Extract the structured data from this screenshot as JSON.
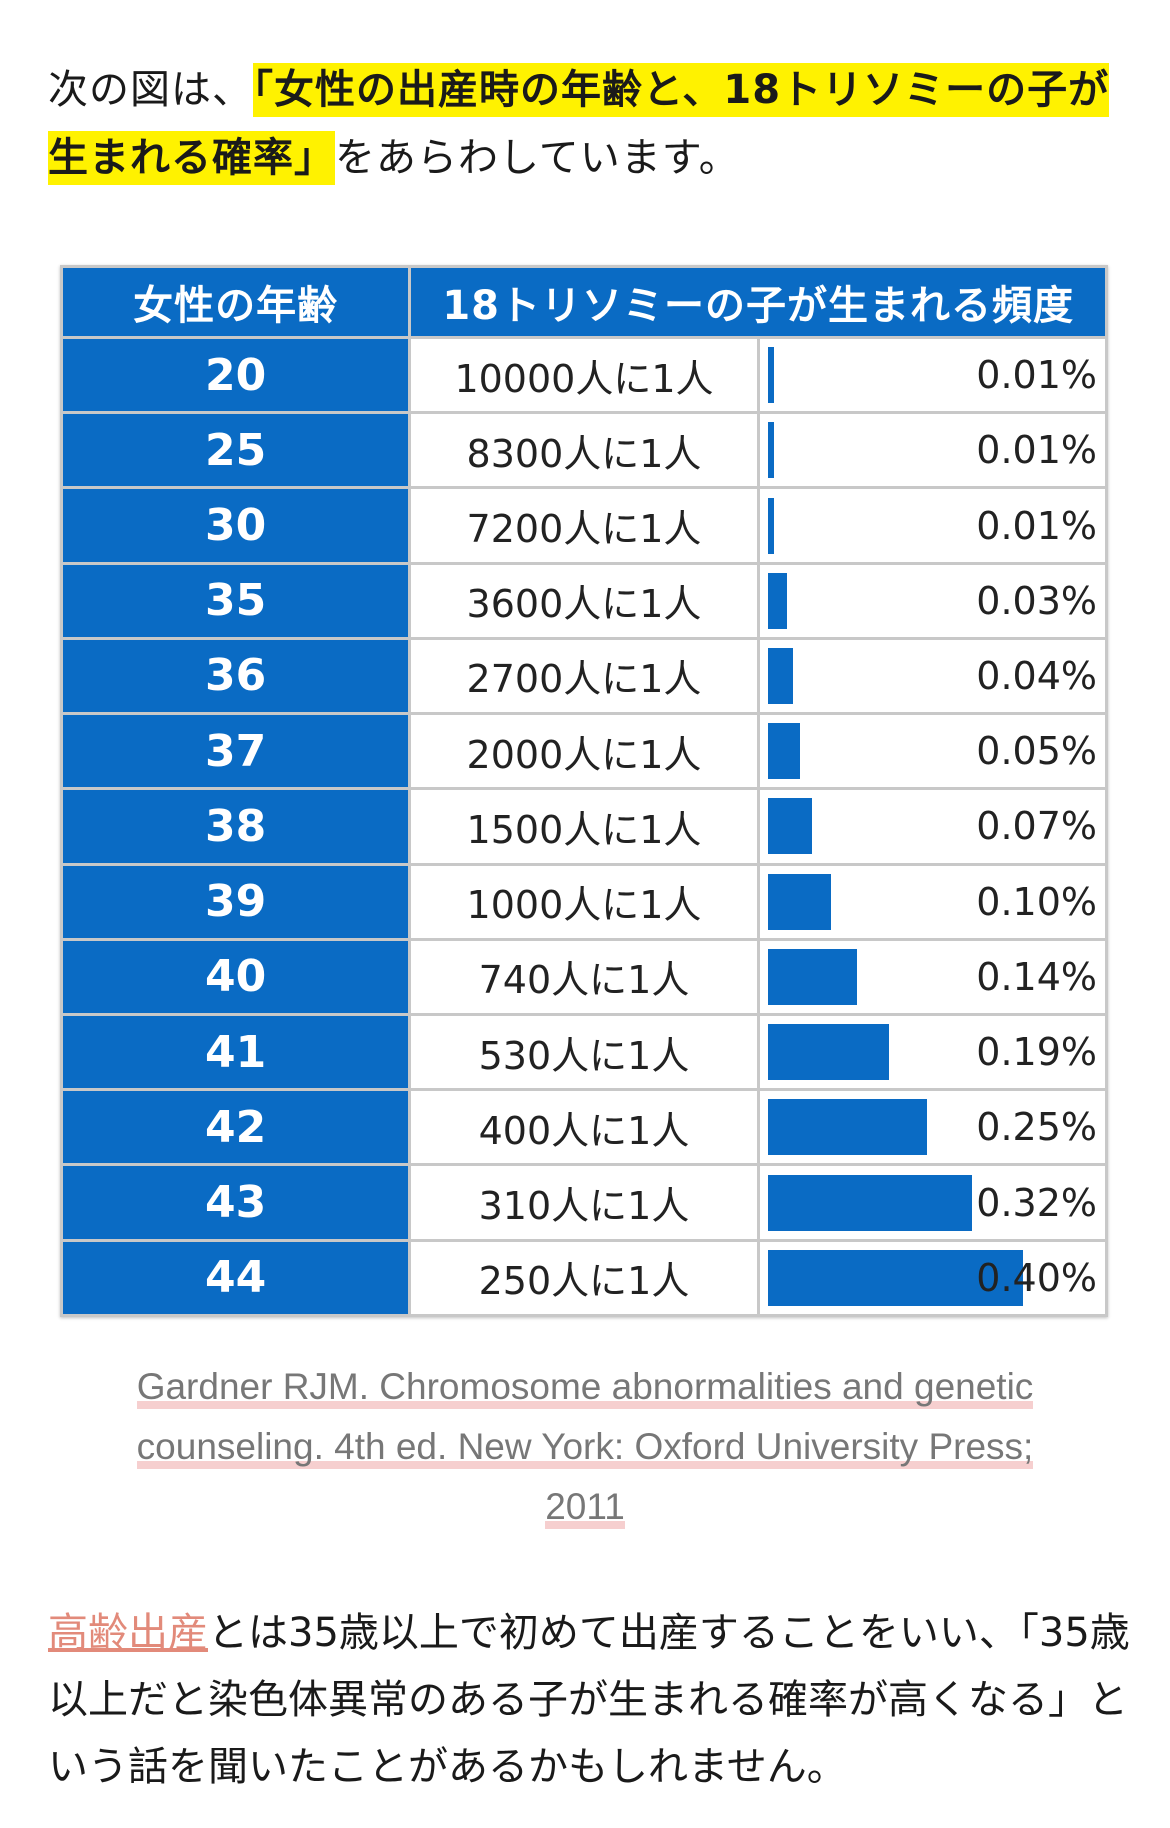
{
  "intro": {
    "prefix": "次の図は、",
    "highlight": "「女性の出産時の年齢と、18トリソミーの子が生まれる確率」",
    "suffix": "をあらわしています。"
  },
  "table": {
    "header_age": "女性の年齢",
    "header_freq": "18トリソミーの子が生まれる頻度",
    "rows": [
      {
        "age": "20",
        "ratio": "10000人に1人",
        "pct": "0.01%",
        "value": 0.01
      },
      {
        "age": "25",
        "ratio": "8300人に1人",
        "pct": "0.01%",
        "value": 0.01
      },
      {
        "age": "30",
        "ratio": "7200人に1人",
        "pct": "0.01%",
        "value": 0.01
      },
      {
        "age": "35",
        "ratio": "3600人に1人",
        "pct": "0.03%",
        "value": 0.03
      },
      {
        "age": "36",
        "ratio": "2700人に1人",
        "pct": "0.04%",
        "value": 0.04
      },
      {
        "age": "37",
        "ratio": "2000人に1人",
        "pct": "0.05%",
        "value": 0.05
      },
      {
        "age": "38",
        "ratio": "1500人に1人",
        "pct": "0.07%",
        "value": 0.07
      },
      {
        "age": "39",
        "ratio": "1000人に1人",
        "pct": "0.10%",
        "value": 0.1
      },
      {
        "age": "40",
        "ratio": "740人に1人",
        "pct": "0.14%",
        "value": 0.14
      },
      {
        "age": "41",
        "ratio": "530人に1人",
        "pct": "0.19%",
        "value": 0.19
      },
      {
        "age": "42",
        "ratio": "400人に1人",
        "pct": "0.25%",
        "value": 0.25
      },
      {
        "age": "43",
        "ratio": "310人に1人",
        "pct": "0.32%",
        "value": 0.32
      },
      {
        "age": "44",
        "ratio": "250人に1人",
        "pct": "0.40%",
        "value": 0.4
      }
    ]
  },
  "citation": {
    "line1": "Gardner RJM. Chromosome abnormalities and genetic",
    "line2": "counseling. 4th ed. New York: Oxford University Press;",
    "line3": "2011"
  },
  "body": {
    "link_text": "高齢出産",
    "text1": "とは35歳以上で初めて出産することをいい、",
    "text2": "「35歳以上だと染色体異常のある子が生まれる確率が高くなる」という話を聞いたことがあるかもしれません。"
  },
  "colors": {
    "highlight": "#fff200",
    "table_blue": "#0a6bc4",
    "link": "#e28a7a",
    "citation_underline": "#f6cfcf"
  }
}
